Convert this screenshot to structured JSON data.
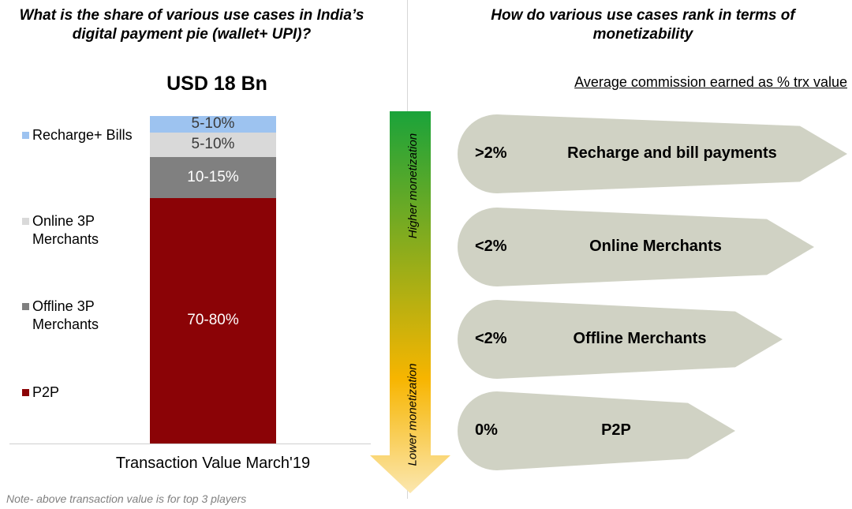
{
  "left_title": "What is the share of various use cases in India’s digital payment pie (wallet+ UPI)?",
  "right_title": "How do various use cases rank in terms of monetizability",
  "total": "USD 18 Bn",
  "xlabel": "Transaction Value March'19",
  "note": "Note- above transaction value is for top 3 players",
  "commission_heading": "Average commission earned as % trx value",
  "arrow": {
    "top_label": "Higher monetization",
    "bottom_label": "Lower monetization",
    "colors": [
      "#1aa33a",
      "#f7b500",
      "#fbe7b0"
    ]
  },
  "colors": {
    "recharge": "#9dc3f0",
    "online": "#d9d9d9",
    "offline": "#808080",
    "p2p": "#8b0306",
    "chevron": "#d0d2c4"
  },
  "chart_data": {
    "type": "bar",
    "title": "USD 18 Bn",
    "xlabel": "Transaction Value March'19",
    "categories": [
      "Transaction Value March'19"
    ],
    "series": [
      {
        "name": "P2P",
        "label": "70-80%",
        "values": [
          75
        ]
      },
      {
        "name": "Offline 3P Merchants",
        "label": "10-15%",
        "values": [
          12.5
        ]
      },
      {
        "name": "Online 3P Merchants",
        "label": "5-10%",
        "values": [
          7.5
        ]
      },
      {
        "name": "Recharge+ Bills",
        "label": "5-10%",
        "values": [
          5
        ]
      }
    ],
    "legend": [
      {
        "label": "Recharge+ Bills",
        "color": "#9dc3f0"
      },
      {
        "label": "Online 3P Merchants",
        "color": "#d9d9d9"
      },
      {
        "label": "Offline 3P Merchants",
        "color": "#808080"
      },
      {
        "label": "P2P",
        "color": "#8b0306"
      }
    ]
  },
  "ranking": [
    {
      "pct": ">2%",
      "label": "Recharge and bill payments"
    },
    {
      "pct": "<2%",
      "label": "Online Merchants"
    },
    {
      "pct": "<2%",
      "label": "Offline Merchants"
    },
    {
      "pct": "0%",
      "label": "P2P"
    }
  ]
}
